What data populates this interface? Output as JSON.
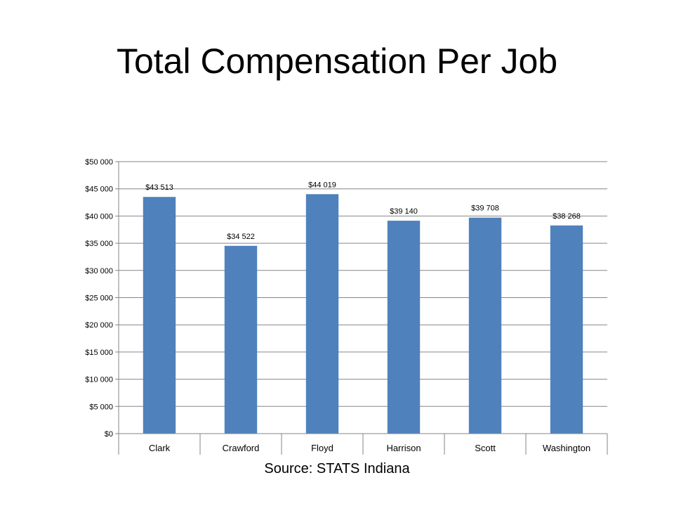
{
  "chart_data": {
    "type": "bar",
    "title": "Total Compensation Per Job",
    "categories": [
      "Clark",
      "Crawford",
      "Floyd",
      "Harrison",
      "Scott",
      "Washington"
    ],
    "values": [
      43513,
      34522,
      44019,
      39140,
      39708,
      38268
    ],
    "data_labels": [
      "$43 513",
      "$34 522",
      "$44 019",
      "$39 140",
      "$39 708",
      "$38 268"
    ],
    "ylim": [
      0,
      50000
    ],
    "yticks": [
      0,
      5000,
      10000,
      15000,
      20000,
      25000,
      30000,
      35000,
      40000,
      45000,
      50000
    ],
    "ytick_labels": [
      "$0",
      "$5 000",
      "$10 000",
      "$15 000",
      "$20 000",
      "$25 000",
      "$30 000",
      "$35 000",
      "$40 000",
      "$45 000",
      "$50 000"
    ],
    "xlabel": "",
    "ylabel": "",
    "grid": true,
    "bar_color": "#4f81bd",
    "source": "Source:  STATS Indiana"
  }
}
